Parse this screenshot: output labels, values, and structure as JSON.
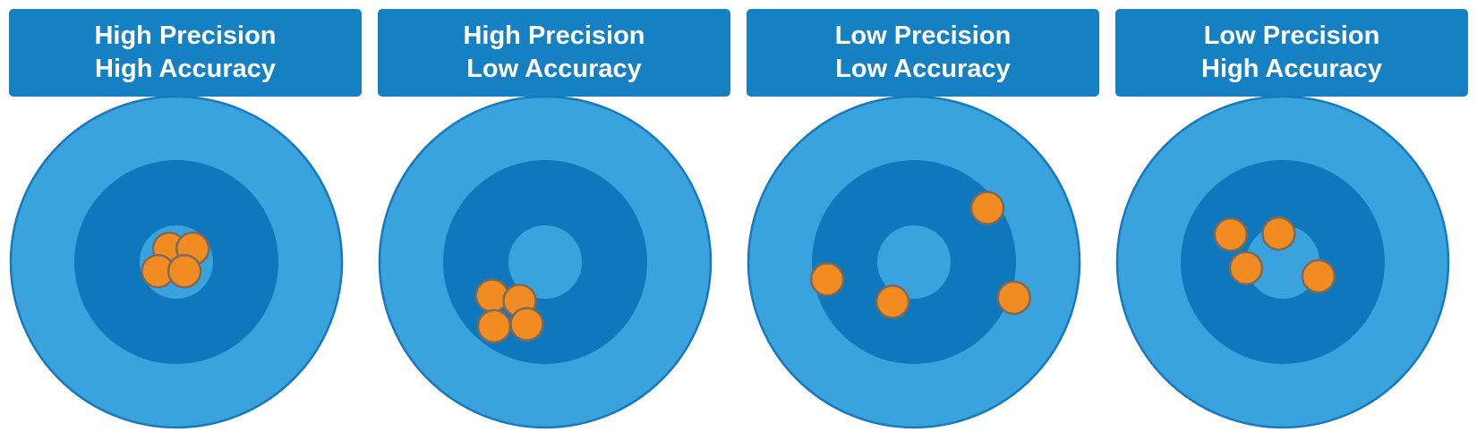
{
  "colors": {
    "header_bg": "#1580c2",
    "outer_ring": "#3aa3de",
    "ring_stroke": "#1779bd",
    "middle_ring": "#0f78bd",
    "bullseye": "#3aa3de",
    "hit_fill": "#f18c22",
    "hit_stroke": "#7a6a5c"
  },
  "panels": [
    {
      "line1": "High Precision",
      "line2": "High Accuracy",
      "hits": [
        [
          -0.07,
          -0.13
        ],
        [
          0.16,
          -0.13
        ],
        [
          -0.18,
          0.09
        ],
        [
          0.08,
          0.09
        ]
      ]
    },
    {
      "line1": "High Precision",
      "line2": "Low Accuracy",
      "hits": [
        [
          -0.52,
          0.33
        ],
        [
          -0.25,
          0.38
        ],
        [
          -0.5,
          0.63
        ],
        [
          -0.18,
          0.61
        ]
      ]
    },
    {
      "line1": "Low Precision",
      "line2": "Low Accuracy",
      "hits": [
        [
          0.72,
          -0.53
        ],
        [
          -0.85,
          0.17
        ],
        [
          -0.21,
          0.39
        ],
        [
          0.98,
          0.35
        ]
      ]
    },
    {
      "line1": "Low Precision",
      "line2": "High Accuracy",
      "hits": [
        [
          -0.51,
          -0.27
        ],
        [
          -0.04,
          -0.28
        ],
        [
          -0.36,
          0.06
        ],
        [
          0.35,
          0.14
        ]
      ]
    }
  ]
}
